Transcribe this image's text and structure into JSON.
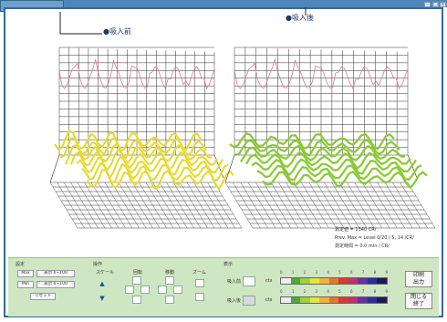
{
  "markers": {
    "before": "●吸入前",
    "after": "●吸入後"
  },
  "info": {
    "rows": [
      {
        "label": "測定値",
        "value": "= 1340 CR/"
      },
      {
        "label": "Prev. Max",
        "value": "= Level 0/20 / 5, 14 /CR/"
      },
      {
        "label": "測定時間",
        "value": "= 0.0 min / CR/"
      }
    ]
  },
  "panel": {
    "group1_label": "設定",
    "group1_buttons": [
      "Max",
      "表示 0~100",
      "Min",
      "表示 0~100",
      "リセット"
    ],
    "group2_label": "操作",
    "group2_labels": [
      "スケール",
      "回転",
      "移動",
      "ズーム"
    ],
    "group3_label": "表示",
    "color_rows": [
      {
        "label": "吸入前"
      },
      {
        "label": "吸入後"
      }
    ],
    "scale_ticks": [
      "0",
      "1",
      "2",
      "3",
      "4",
      "5",
      "6",
      "7",
      "8",
      "9"
    ],
    "scale_unit": "cts",
    "button_print": "印刷\n出力",
    "button_close": "閉じる\n終了"
  },
  "colors": {
    "title_bar": "#4f86b8",
    "panel_bg": "#cfe6c3",
    "wave_before": "#f2e640",
    "wave_after": "#8fd13a",
    "grid": "#333333"
  }
}
